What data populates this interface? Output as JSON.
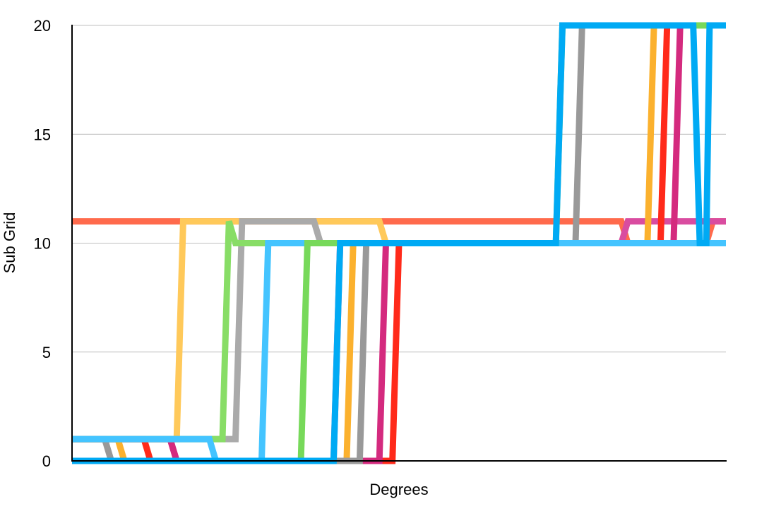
{
  "chart_data": {
    "type": "line",
    "title": "",
    "xlabel": "Degrees",
    "ylabel": "Sub Grid",
    "xlim": [
      0,
      100
    ],
    "ylim": [
      0,
      20
    ],
    "yticks": [
      0,
      5,
      10,
      15,
      20
    ],
    "grid": true,
    "legend": "none",
    "series": [
      {
        "color": "#ff6a4c",
        "points": [
          [
            0,
            11
          ],
          [
            84,
            11
          ],
          [
            85,
            10
          ],
          [
            97,
            10
          ],
          [
            98,
            11
          ],
          [
            100,
            11
          ]
        ]
      },
      {
        "color": "#d94ca0",
        "points": [
          [
            0,
            1
          ],
          [
            15,
            1
          ],
          [
            16,
            0
          ],
          [
            40,
            0
          ],
          [
            41,
            10
          ],
          [
            84,
            10
          ],
          [
            85,
            11
          ],
          [
            100,
            11
          ]
        ]
      },
      {
        "color": "#ffc95a",
        "points": [
          [
            0,
            1
          ],
          [
            16,
            1
          ],
          [
            17,
            11
          ],
          [
            47,
            11
          ],
          [
            48,
            10
          ],
          [
            100,
            10
          ]
        ]
      },
      {
        "color": "#aaaaaa",
        "points": [
          [
            0,
            1
          ],
          [
            25,
            1
          ],
          [
            26,
            11
          ],
          [
            37,
            11
          ],
          [
            38,
            10
          ],
          [
            100,
            10
          ]
        ]
      },
      {
        "color": "#ff2a1a",
        "points": [
          [
            0,
            1
          ],
          [
            11,
            1
          ],
          [
            12,
            0
          ],
          [
            49,
            0
          ],
          [
            50,
            10
          ],
          [
            90,
            10
          ],
          [
            91,
            20
          ],
          [
            100,
            20
          ]
        ]
      },
      {
        "color": "#d42a7e",
        "points": [
          [
            0,
            1
          ],
          [
            15,
            1
          ],
          [
            16,
            0
          ],
          [
            47,
            0
          ],
          [
            48,
            10
          ],
          [
            92,
            10
          ],
          [
            93,
            20
          ],
          [
            100,
            20
          ]
        ]
      },
      {
        "color": "#fbb12e",
        "points": [
          [
            0,
            1
          ],
          [
            7,
            1
          ],
          [
            8,
            0
          ],
          [
            42,
            0
          ],
          [
            43,
            10
          ],
          [
            88,
            10
          ],
          [
            89,
            20
          ],
          [
            100,
            20
          ]
        ]
      },
      {
        "color": "#88dd66",
        "points": [
          [
            0,
            1
          ],
          [
            23,
            1
          ],
          [
            24,
            11
          ],
          [
            25,
            10
          ],
          [
            100,
            10
          ]
        ]
      },
      {
        "color": "#999999",
        "points": [
          [
            0,
            1
          ],
          [
            5,
            1
          ],
          [
            6,
            0
          ],
          [
            44,
            0
          ],
          [
            45,
            10
          ],
          [
            77,
            10
          ],
          [
            78,
            20
          ],
          [
            100,
            20
          ]
        ]
      },
      {
        "color": "#44c4ff",
        "points": [
          [
            0,
            1
          ],
          [
            21,
            1
          ],
          [
            22,
            0
          ],
          [
            29,
            0
          ],
          [
            30,
            10
          ],
          [
            100,
            10
          ]
        ]
      },
      {
        "color": "#77d95a",
        "points": [
          [
            0,
            0
          ],
          [
            35,
            0
          ],
          [
            36,
            10
          ],
          [
            74,
            10
          ],
          [
            75,
            20
          ],
          [
            100,
            20
          ]
        ]
      },
      {
        "color": "#00aaf4",
        "points": [
          [
            0,
            0
          ],
          [
            40,
            0
          ],
          [
            41,
            10
          ],
          [
            74,
            10
          ],
          [
            75,
            20
          ],
          [
            95,
            20
          ],
          [
            96,
            10
          ],
          [
            97,
            10
          ],
          [
            97.5,
            20
          ],
          [
            100,
            20
          ]
        ]
      }
    ]
  }
}
